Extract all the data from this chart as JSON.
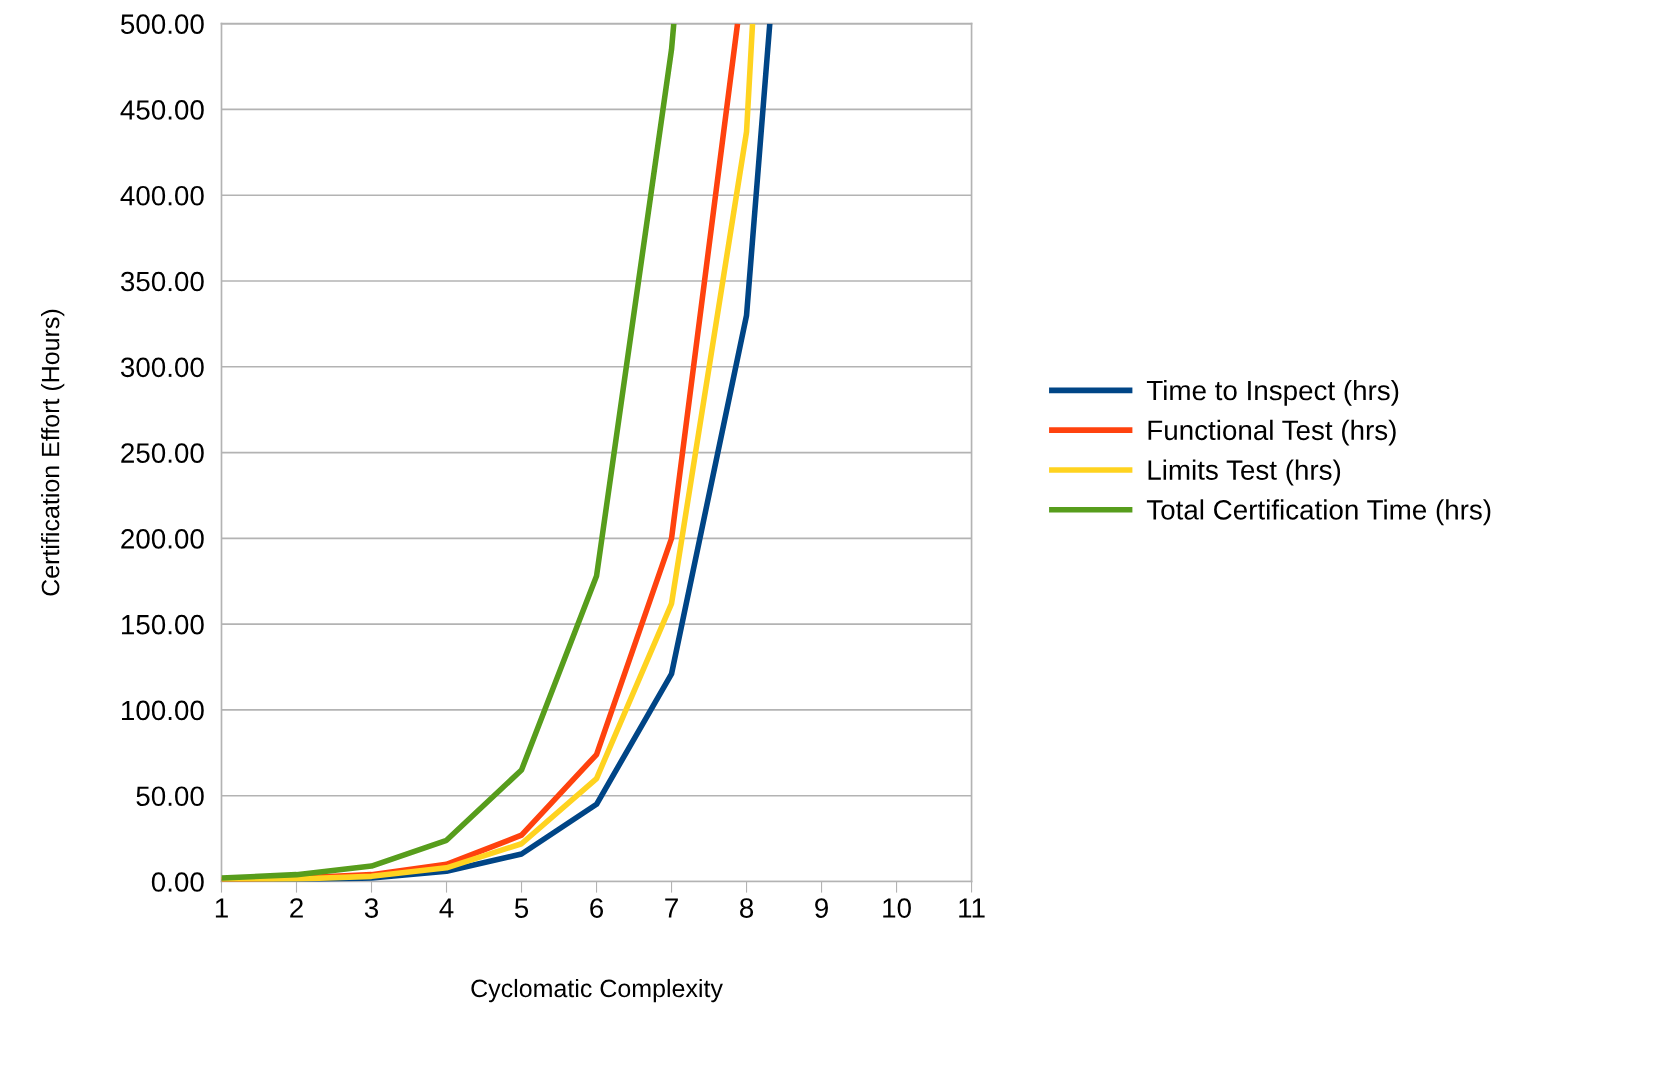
{
  "chart_data": {
    "type": "line",
    "xlabel": "Cyclomatic Complexity",
    "ylabel": "Certification Effort (Hours)",
    "series": [
      {
        "name": "Time to Inspect (hrs)",
        "color": "#004586",
        "x": [
          1,
          2,
          3,
          4,
          5,
          6,
          7,
          8,
          8.31
        ],
        "values": [
          0,
          1,
          2,
          6,
          16,
          45,
          121,
          330,
          500
        ]
      },
      {
        "name": "Functional Test (hrs)",
        "color": "#ff420e",
        "x": [
          1,
          2,
          3,
          4,
          5,
          6,
          7,
          7.88
        ],
        "values": [
          1,
          2,
          4,
          10,
          27,
          74,
          200,
          500
        ]
      },
      {
        "name": "Limits Test (hrs)",
        "color": "#ffd320",
        "x": [
          1,
          2,
          3,
          4,
          5,
          6,
          7,
          8,
          8.08
        ],
        "values": [
          1,
          1.5,
          3,
          8,
          22,
          60,
          162,
          437,
          500
        ]
      },
      {
        "name": "Total Certification Time (hrs)",
        "color": "#579d1c",
        "x": [
          1,
          2,
          3,
          4,
          5,
          6,
          7,
          7.03
        ],
        "values": [
          2,
          4,
          9,
          24,
          65,
          178,
          485,
          500
        ]
      }
    ],
    "xlim": [
      1,
      11
    ],
    "xticks": [
      1,
      2,
      3,
      4,
      5,
      6,
      7,
      8,
      9,
      10,
      11
    ],
    "ylim": [
      0,
      500
    ],
    "yticks": [
      {
        "value": 0,
        "label": "0.00"
      },
      {
        "value": 50,
        "label": "50.00"
      },
      {
        "value": 100,
        "label": "100.00"
      },
      {
        "value": 150,
        "label": "150.00"
      },
      {
        "value": 200,
        "label": "200.00"
      },
      {
        "value": 250,
        "label": "250.00"
      },
      {
        "value": 300,
        "label": "300.00"
      },
      {
        "value": 350,
        "label": "350.00"
      },
      {
        "value": 400,
        "label": "400.00"
      },
      {
        "value": 450,
        "label": "450.00"
      },
      {
        "value": 500,
        "label": "500.00"
      }
    ],
    "grid": "y",
    "legend": "right",
    "marker": "none",
    "line_style": "solid"
  }
}
